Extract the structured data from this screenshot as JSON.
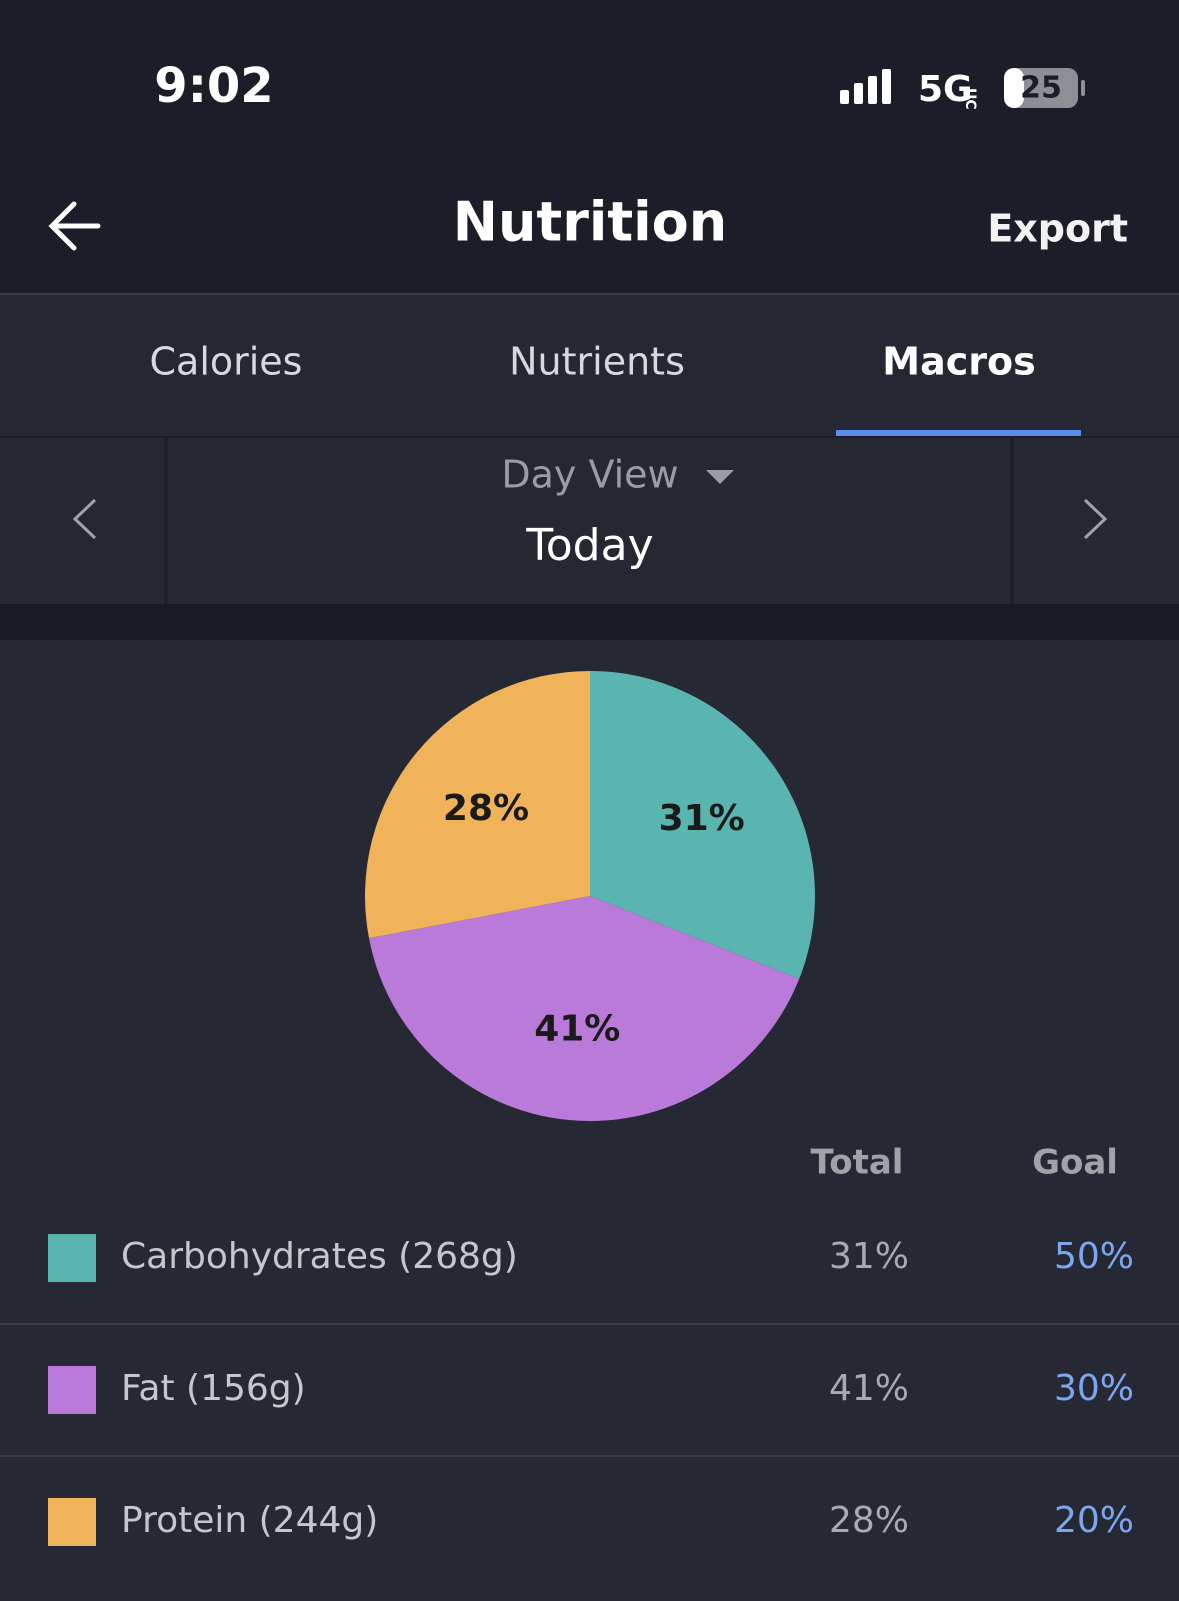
{
  "status_bar": {
    "time": "9:02",
    "network": "5G",
    "network_badge": "UC",
    "battery": "25"
  },
  "header": {
    "title": "Nutrition",
    "action": "Export"
  },
  "tabs": {
    "items": [
      "Calories",
      "Nutrients",
      "Macros"
    ],
    "active": 2
  },
  "date_nav": {
    "view": "Day View",
    "date": "Today"
  },
  "chart_data": {
    "type": "pie",
    "values": [
      31,
      41,
      28
    ],
    "value_labels": [
      "31%",
      "41%",
      "28%"
    ],
    "colors": [
      "#5ab5b0",
      "#b97ad9",
      "#f0b35a"
    ],
    "start_angle": -90,
    "direction": "clockwise"
  },
  "table": {
    "columns": [
      "Total",
      "Goal"
    ],
    "rows": [
      {
        "name": "Carbohydrates (268g)",
        "total": "31%",
        "goal": "50%"
      },
      {
        "name": "Fat (156g)",
        "total": "41%",
        "goal": "30%"
      },
      {
        "name": "Protein (244g)",
        "total": "28%",
        "goal": "20%"
      }
    ]
  }
}
